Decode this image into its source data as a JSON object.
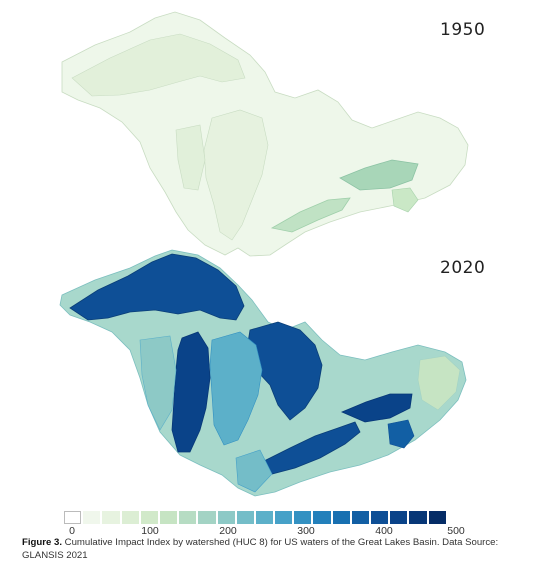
{
  "panels": [
    {
      "year": "1950"
    },
    {
      "year": "2020"
    }
  ],
  "legend": {
    "ticks": [
      "0",
      "100",
      "200",
      "300",
      "400",
      "500"
    ],
    "colors": [
      "#ffffff",
      "#f0f7ec",
      "#e7f3e0",
      "#dceed4",
      "#d1e9c9",
      "#c6e4c3",
      "#b6dcc3",
      "#a3d3c4",
      "#8dc9c6",
      "#74bdc8",
      "#5cb0c9",
      "#46a1c8",
      "#3391c2",
      "#2380bb",
      "#1870b1",
      "#125fa4",
      "#0e4f96",
      "#0a4389",
      "#073777",
      "#052c66"
    ]
  },
  "caption": {
    "label": "Figure 3.",
    "text": " Cumulative Impact Index by watershed (HUC 8) for US waters of the Great Lakes Basin. Data Source: GLANSIS 2021"
  }
}
